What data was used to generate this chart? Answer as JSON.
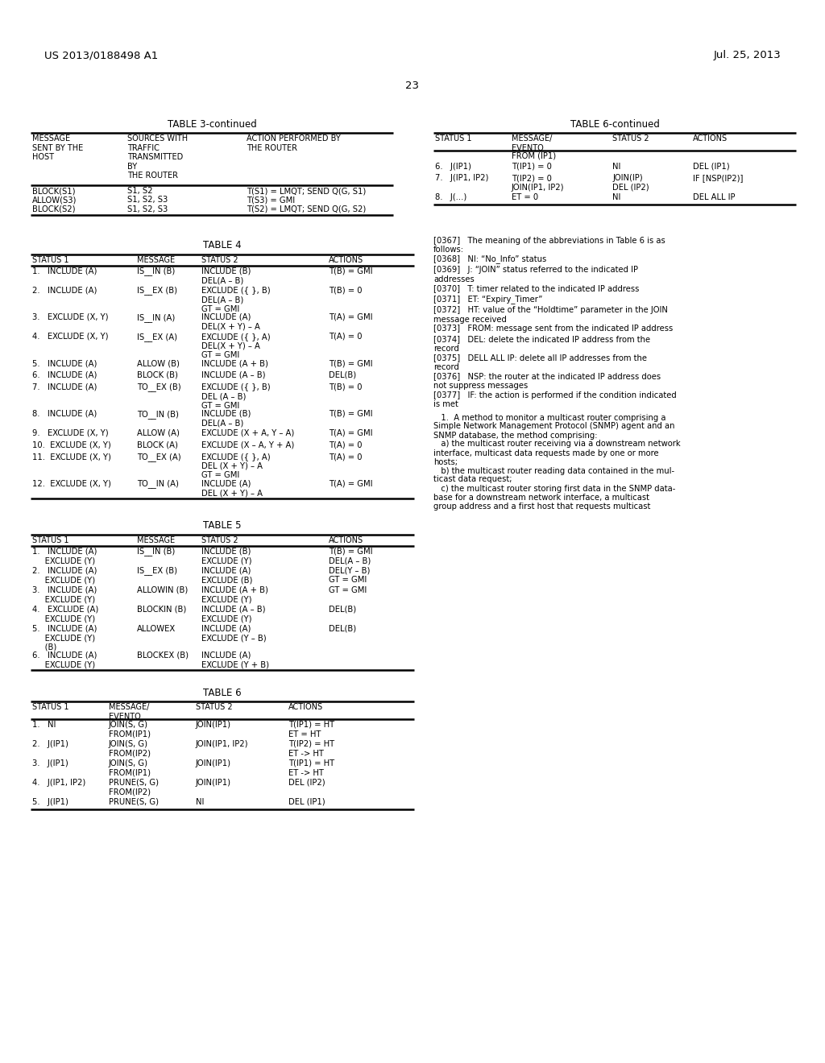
{
  "bg": "#ffffff",
  "page_num": "23",
  "hdr_left": "US 2013/0188498 A1",
  "hdr_right": "Jul. 25, 2013",
  "t3_title": "TABLE 3-continued",
  "t3_col_headers": [
    "MESSAGE\nSENT BY THE\nHOST",
    "SOURCES WITH\nTRAFFIC\nTRANSMITTED\nBY\nTHE ROUTER",
    "ACTION PERFORMED BY\nTHE ROUTER"
  ],
  "t3_rows": [
    [
      "BLOCK(S1)",
      "S1, S2",
      "T(S1) = LMQT; SEND Q(G, S1)"
    ],
    [
      "ALLOW(S3)",
      "S1, S2, S3",
      "T(S3) = GMI"
    ],
    [
      "BLOCK(S2)",
      "S1, S2, S3",
      "T(S2) = LMQT; SEND Q(G, S2)"
    ]
  ],
  "t6c_title": "TABLE 6-continued",
  "t6c_col_headers": [
    "STATUS 1",
    "MESSAGE/\nEVENTO",
    "STATUS 2",
    "ACTIONS"
  ],
  "t6c_pre_note": "FROM (IP1)",
  "t6c_rows": [
    [
      "6.   J(IP1)",
      "T(IP1) = 0",
      "NI",
      "DEL (IP1)"
    ],
    [
      "7.   J(IP1, IP2)",
      "T(IP2) = 0\nJOIN(IP1, IP2)",
      "JOIN(IP)\nDEL (IP2)",
      "IF [NSP(IP2)]"
    ],
    [
      "8.   J(...)",
      "ET = 0",
      "NI",
      "DEL ALL IP"
    ]
  ],
  "t4_title": "TABLE 4",
  "t4_col_headers": [
    "STATUS 1",
    "MESSAGE",
    "STATUS 2",
    "ACTIONS"
  ],
  "t4_rows": [
    [
      "1.   INCLUDE (A)",
      "IS__IN (B)",
      "INCLUDE (B)\nDEL(A – B)",
      "T(B) = GMI"
    ],
    [
      "2.   INCLUDE (A)",
      "IS__EX (B)",
      "EXCLUDE ({ }, B)\nDEL(A – B)\nGT = GMI",
      "T(B) = 0"
    ],
    [
      "3.   EXCLUDE (X, Y)",
      "IS__IN (A)",
      "INCLUDE (A)\nDEL(X + Y) – A",
      "T(A) = GMI"
    ],
    [
      "4.   EXCLUDE (X, Y)",
      "IS__EX (A)",
      "EXCLUDE ({ }, A)\nDEL(X + Y) – A\nGT = GMI",
      "T(A) = 0"
    ],
    [
      "5.   INCLUDE (A)",
      "ALLOW (B)",
      "INCLUDE (A + B)",
      "T(B) = GMI"
    ],
    [
      "6.   INCLUDE (A)",
      "BLOCK (B)",
      "INCLUDE (A – B)",
      "DEL(B)"
    ],
    [
      "7.   INCLUDE (A)",
      "TO__EX (B)",
      "EXCLUDE ({ }, B)\nDEL (A – B)\nGT = GMI",
      "T(B) = 0"
    ],
    [
      "8.   INCLUDE (A)",
      "TO__IN (B)",
      "INCLUDE (B)\nDEL(A – B)",
      "T(B) = GMI"
    ],
    [
      "9.   EXCLUDE (X, Y)",
      "ALLOW (A)",
      "EXCLUDE (X + A, Y – A)",
      "T(A) = GMI"
    ],
    [
      "10.  EXCLUDE (X, Y)",
      "BLOCK (A)",
      "EXCLUDE (X – A, Y + A)",
      "T(A) = 0"
    ],
    [
      "11.  EXCLUDE (X, Y)",
      "TO__EX (A)",
      "EXCLUDE ({ }, A)\nDEL (X + Y) – A\nGT = GMI",
      "T(A) = 0"
    ],
    [
      "12.  EXCLUDE (X, Y)",
      "TO__IN (A)",
      "INCLUDE (A)\nDEL (X + Y) – A",
      "T(A) = GMI"
    ]
  ],
  "t5_title": "TABLE 5",
  "t5_col_headers": [
    "STATUS 1",
    "MESSAGE",
    "STATUS 2",
    "ACTIONS"
  ],
  "t5_rows": [
    [
      "1.   INCLUDE (A)\n     EXCLUDE (Y)",
      "IS__IN (B)",
      "INCLUDE (B)\nEXCLUDE (Y)",
      "T(B) = GMI\nDEL(A – B)"
    ],
    [
      "2.   INCLUDE (A)\n     EXCLUDE (Y)",
      "IS__EX (B)",
      "INCLUDE (A)\nEXCLUDE (B)",
      "DEL(Y – B)\nGT = GMI"
    ],
    [
      "3.   INCLUDE (A)\n     EXCLUDE (Y)",
      "ALLOWIN (B)",
      "INCLUDE (A + B)\nEXCLUDE (Y)",
      "GT = GMI"
    ],
    [
      "4.   EXCLUDE (A)\n     EXCLUDE (Y)",
      "BLOCKIN (B)",
      "INCLUDE (A – B)\nEXCLUDE (Y)",
      "DEL(B)"
    ],
    [
      "5.   INCLUDE (A)\n     EXCLUDE (Y)\n     (B)",
      "ALLOWEX",
      "INCLUDE (A)\nEXCLUDE (Y – B)",
      "DEL(B)"
    ],
    [
      "6.   INCLUDE (A)\n     EXCLUDE (Y)",
      "BLOCKEX (B)",
      "INCLUDE (A)\nEXCLUDE (Y + B)",
      ""
    ]
  ],
  "t6_title": "TABLE 6",
  "t6_col_headers": [
    "STATUS 1",
    "MESSAGE/\nEVENTO",
    "STATUS 2",
    "ACTIONS"
  ],
  "t6_rows": [
    [
      "1.   NI",
      "JOIN(S, G)\nFROM(IP1)",
      "JOIN(IP1)",
      "T(IP1) = HT\nET = HT"
    ],
    [
      "2.   J(IP1)",
      "JOIN(S, G)\nFROM(IP2)",
      "JOIN(IP1, IP2)",
      "T(IP2) = HT\nET -> HT"
    ],
    [
      "3.   J(IP1)",
      "JOIN(S, G)\nFROM(IP1)",
      "JOIN(IP1)",
      "T(IP1) = HT\nET -> HT"
    ],
    [
      "4.   J(IP1, IP2)",
      "PRUNE(S, G)\nFROM(IP2)",
      "JOIN(IP1)",
      "DEL (IP2)"
    ],
    [
      "5.   J(IP1)",
      "PRUNE(S, G)",
      "NI",
      "DEL (IP1)"
    ]
  ],
  "para_items": [
    {
      "tag": "[0367]",
      "text": "   The meaning of the abbreviations in Table 6 is as\nfollows:"
    },
    {
      "tag": "[0368]",
      "text": "   NI: “No_Info” status"
    },
    {
      "tag": "[0369]",
      "text": "   J: “JOIN” status referred to the indicated IP\naddresses"
    },
    {
      "tag": "[0370]",
      "text": "   T: timer related to the indicated IP address"
    },
    {
      "tag": "[0371]",
      "text": "   ET: “Expiry_Timer”"
    },
    {
      "tag": "[0372]",
      "text": "   HT: value of the “Holdtime” parameter in the JOIN\nmessage received"
    },
    {
      "tag": "[0373]",
      "text": "   FROM: message sent from the indicated IP address"
    },
    {
      "tag": "[0374]",
      "text": "   DEL: delete the indicated IP address from the\nrecord"
    },
    {
      "tag": "[0375]",
      "text": "   DELL ALL IP: delete all IP addresses from the\nrecord"
    },
    {
      "tag": "[0376]",
      "text": "   NSP: the router at the indicated IP address does\nnot suppress messages"
    },
    {
      "tag": "[0377]",
      "text": "   IF: the action is performed if the condition indicated\nis met"
    }
  ],
  "claim_lines": [
    "   1.  A method to monitor a multicast router comprising a",
    "Simple Network Management Protocol (SNMP) agent and an",
    "SNMP database, the method comprising:",
    "   a) the multicast router receiving via a downstream network",
    "interface, multicast data requests made by one or more",
    "hosts;",
    "   b) the multicast router reading data contained in the mul-",
    "ticast data request;",
    "   c) the multicast router storing first data in the SNMP data-",
    "base for a downstream network interface, a multicast",
    "group address and a first host that requests multicast"
  ]
}
